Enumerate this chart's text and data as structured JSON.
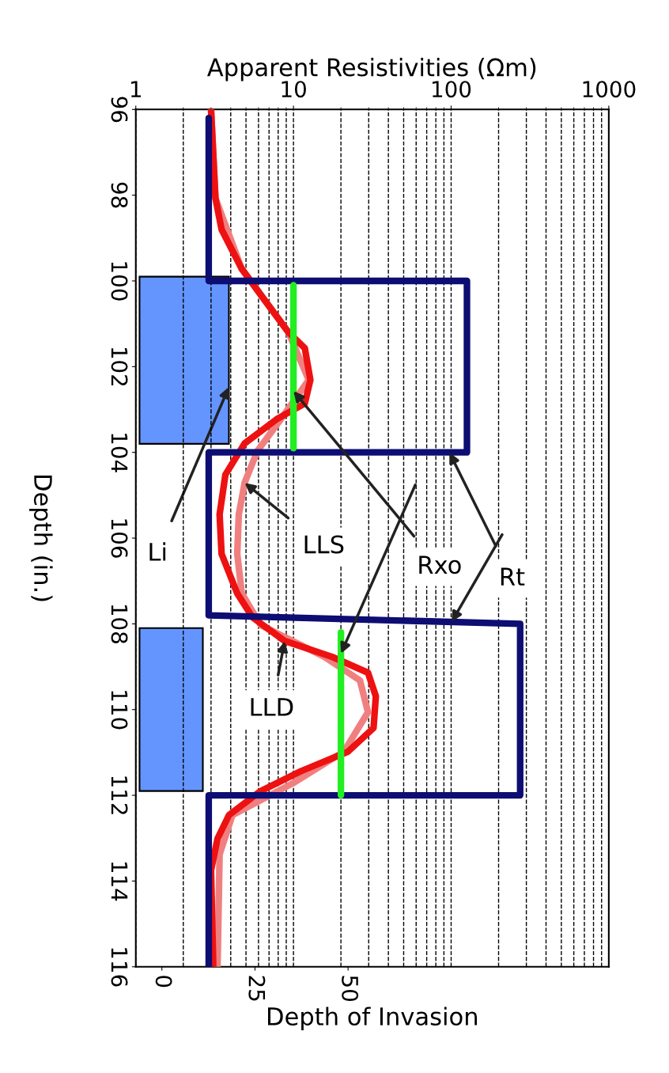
{
  "chart_data": {
    "type": "line",
    "orientation": "horizontal",
    "xlabel": "Apparent Resistivities (Ωm)",
    "ylabel": "Depth (in.)",
    "x2label": "Depth of Invasion",
    "log": "x",
    "xlim": [
      1,
      1000
    ],
    "xticks": [
      1,
      10,
      100,
      1000
    ],
    "ylim": [
      116,
      96
    ],
    "yticks": [
      96,
      98,
      100,
      102,
      104,
      106,
      108,
      110,
      112,
      114,
      116
    ],
    "x2lim": [
      -7,
      120
    ],
    "x2ticks": [
      0,
      25,
      50
    ],
    "grid": "x",
    "legend": false,
    "series": [
      {
        "name": "Li",
        "type": "area",
        "axis": "x2",
        "color": "#6495ff",
        "x": [
          99.9,
          99.9,
          103.8,
          103.8,
          106,
          108.1,
          108.1,
          111.9,
          111.9
        ],
        "values": [
          -6,
          18,
          18,
          -6,
          null,
          -6,
          11,
          11,
          -6
        ]
      },
      {
        "name": "LLS",
        "color": "#f08080",
        "x": [
          96.0,
          98.07,
          99.72,
          101.2,
          102.31,
          103.23,
          103.97,
          104.71,
          105.45,
          106.37,
          107.29,
          108.03,
          108.77,
          109.32,
          110.06,
          110.98,
          111.72,
          112.46,
          113.38,
          116.0
        ],
        "values": [
          3.0,
          3.2,
          4.7,
          9.3,
          12.5,
          8.3,
          5.9,
          4.9,
          4.5,
          4.4,
          4.7,
          6.2,
          15.7,
          26.4,
          29.7,
          20.9,
          9.9,
          4.1,
          3.4,
          3.3
        ]
      },
      {
        "name": "LLD",
        "color": "#ee1111",
        "x": [
          96.0,
          98.07,
          98.8,
          99.72,
          100.46,
          101.2,
          101.57,
          102.31,
          102.86,
          103.23,
          103.79,
          104.52,
          105.45,
          106.37,
          107.29,
          107.85,
          108.4,
          108.77,
          109.14,
          109.69,
          110.43,
          110.98,
          111.44,
          111.9,
          112.46,
          113.01,
          113.75,
          116.0
        ],
        "values": [
          3.0,
          3.2,
          3.5,
          4.7,
          6.6,
          9.3,
          11.8,
          12.8,
          11.8,
          7.8,
          4.9,
          3.7,
          3.4,
          3.5,
          4.4,
          5.5,
          8.8,
          17.6,
          29.7,
          33.3,
          32.2,
          22.2,
          11.1,
          6.2,
          3.9,
          3.3,
          3.0,
          3.1
        ]
      },
      {
        "name": "Rt",
        "color": "#0d0d73",
        "x": [
          96.2,
          100,
          100,
          104,
          104,
          107.8,
          108,
          112,
          112,
          116
        ],
        "values": [
          2.9,
          2.9,
          126,
          126,
          2.9,
          2.9,
          274,
          274,
          2.9,
          2.9
        ]
      },
      {
        "name": "Rxo",
        "color": "#22ee22",
        "x": [
          100.1,
          103.9,
          106,
          108.2,
          112
        ],
        "values": [
          10,
          10,
          null,
          20,
          20
        ]
      }
    ]
  }
}
